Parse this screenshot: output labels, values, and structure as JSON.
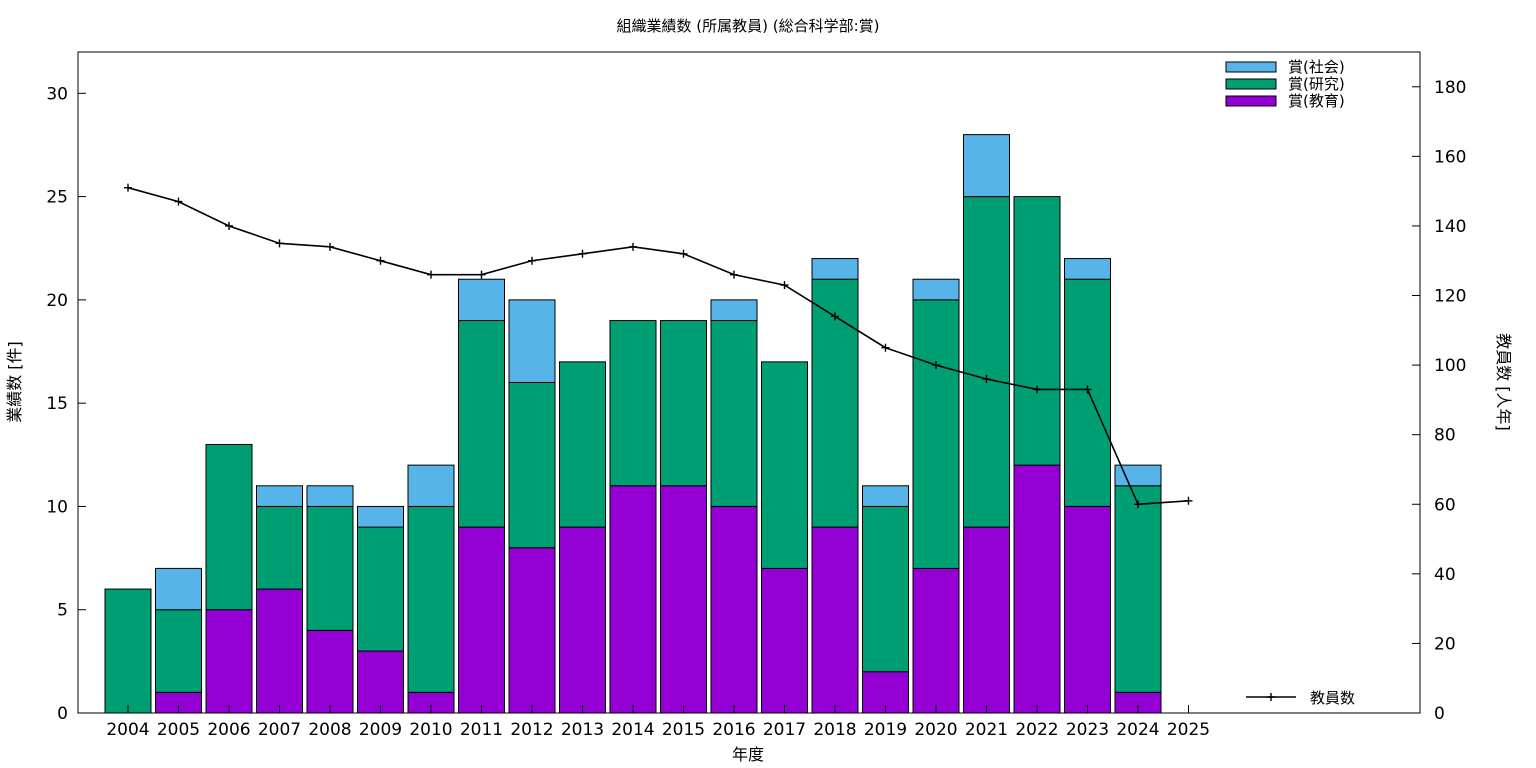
{
  "chart_data": {
    "type": "bar",
    "stacked": true,
    "title": "組織業績数 (所属教員) (総合科学部:賞)",
    "xlabel": "年度",
    "ylabel": "業績数 [件]",
    "y2label": "教員数 [人年]",
    "categories": [
      "2004",
      "2005",
      "2006",
      "2007",
      "2008",
      "2009",
      "2010",
      "2011",
      "2012",
      "2013",
      "2014",
      "2015",
      "2016",
      "2017",
      "2018",
      "2019",
      "2020",
      "2021",
      "2022",
      "2023",
      "2024",
      "2025"
    ],
    "ylim": [
      0,
      32
    ],
    "y2lim": [
      0,
      190
    ],
    "yticks": [
      0,
      5,
      10,
      15,
      20,
      25,
      30
    ],
    "y2ticks": [
      0,
      20,
      40,
      60,
      80,
      100,
      120,
      140,
      160,
      180
    ],
    "series": [
      {
        "name": "賞(教育)",
        "color": "#9400d3",
        "values": [
          0,
          1,
          5,
          6,
          4,
          3,
          1,
          9,
          8,
          9,
          11,
          11,
          10,
          7,
          9,
          2,
          7,
          9,
          12,
          10,
          1,
          0
        ]
      },
      {
        "name": "賞(研究)",
        "color": "#009e73",
        "values": [
          6,
          4,
          8,
          4,
          6,
          6,
          9,
          10,
          8,
          8,
          8,
          8,
          9,
          10,
          12,
          8,
          13,
          16,
          13,
          11,
          10,
          0
        ]
      },
      {
        "name": "賞(社会)",
        "color": "#56b4e9",
        "values": [
          0,
          2,
          0,
          1,
          1,
          1,
          2,
          2,
          4,
          0,
          0,
          0,
          1,
          0,
          1,
          1,
          1,
          3,
          0,
          1,
          1,
          0
        ]
      }
    ],
    "line_series": {
      "name": "教員数",
      "color": "#000000",
      "axis": "y2",
      "values": [
        151,
        147,
        140,
        135,
        134,
        130,
        126,
        126,
        130,
        132,
        134,
        132,
        126,
        123,
        114,
        105,
        100,
        96,
        93,
        93,
        60,
        61
      ]
    },
    "legend_position": "top-right",
    "line_legend_position": "bottom-right",
    "grid": false
  }
}
